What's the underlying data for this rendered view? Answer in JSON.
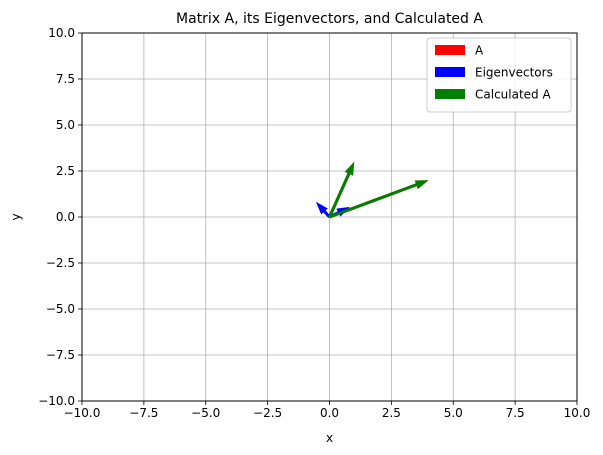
{
  "chart_data": {
    "type": "quiver",
    "title": "Matrix A, its Eigenvectors, and Calculated A",
    "xlabel": "x",
    "ylabel": "y",
    "xlim": [
      -10,
      10
    ],
    "ylim": [
      -10,
      10
    ],
    "xticks": [
      -10,
      -7.5,
      -5,
      -2.5,
      0,
      2.5,
      5,
      7.5,
      10
    ],
    "yticks": [
      -10,
      -7.5,
      -5,
      -2.5,
      0,
      2.5,
      5,
      7.5,
      10
    ],
    "xtick_labels": [
      "−10.0",
      "−7.5",
      "−5.0",
      "−2.5",
      "0.0",
      "2.5",
      "5.0",
      "7.5",
      "10.0"
    ],
    "ytick_labels": [
      "−10.0",
      "−7.5",
      "−5.0",
      "−2.5",
      "0.0",
      "2.5",
      "5.0",
      "7.5",
      "10.0"
    ],
    "grid": true,
    "legend_position": "upper-right",
    "series": [
      {
        "name": "A",
        "color": "#ff0000",
        "vectors": [
          {
            "x0": 0,
            "y0": 0,
            "dx": 4,
            "dy": 2
          },
          {
            "x0": 0,
            "y0": 0,
            "dx": 1,
            "dy": 3
          }
        ]
      },
      {
        "name": "Eigenvectors",
        "color": "#0000ff",
        "vectors": [
          {
            "x0": 0,
            "y0": 0,
            "dx": 0.83,
            "dy": 0.55
          },
          {
            "x0": 0,
            "y0": 0,
            "dx": -0.55,
            "dy": 0.83
          }
        ]
      },
      {
        "name": "Calculated A",
        "color": "#008000",
        "vectors": [
          {
            "x0": 0,
            "y0": 0,
            "dx": 4,
            "dy": 2
          },
          {
            "x0": 0,
            "y0": 0,
            "dx": 1,
            "dy": 3
          }
        ]
      }
    ]
  }
}
